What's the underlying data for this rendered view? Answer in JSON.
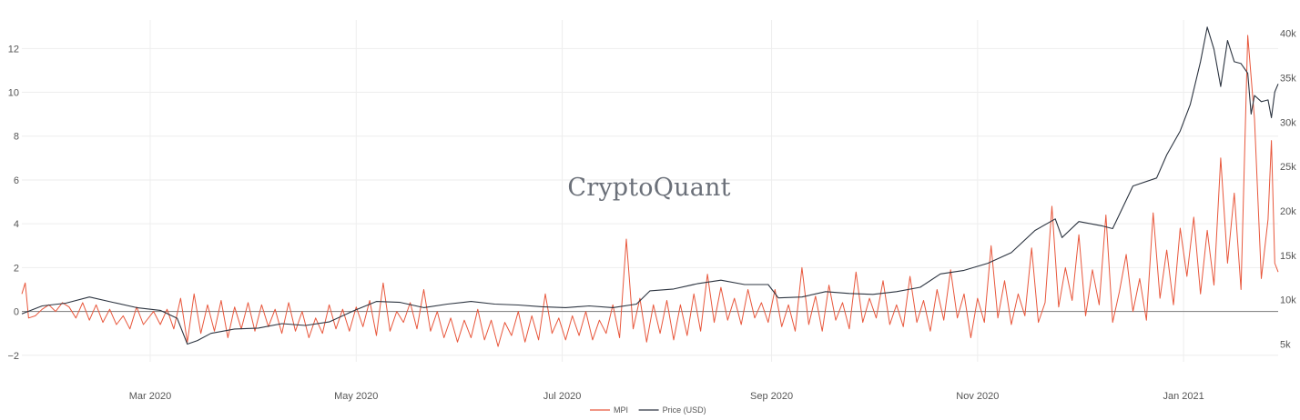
{
  "watermark": "CryptoQuant",
  "chart_data": {
    "type": "line",
    "x_range": [
      "2020-01-23",
      "2021-01-29"
    ],
    "x_ticks": [
      "2020-03-01",
      "2020-05-01",
      "2020-07-01",
      "2020-09-01",
      "2020-11-01",
      "2021-01-01"
    ],
    "x_tick_labels": [
      "Mar 2020",
      "May 2020",
      "Jul 2020",
      "Sep 2020",
      "Nov 2020",
      "Jan 2021"
    ],
    "y_left": {
      "range": [
        -2.3,
        13.3
      ],
      "ticks": [
        -2,
        0,
        2,
        4,
        6,
        8,
        10,
        12
      ],
      "tick_labels": [
        "−2",
        "0",
        "2",
        "4",
        "6",
        "8",
        "10",
        "12"
      ]
    },
    "y_right": {
      "range": [
        3000,
        41500
      ],
      "ticks": [
        5000,
        10000,
        15000,
        20000,
        25000,
        30000,
        35000,
        40000
      ],
      "tick_labels": [
        "5k",
        "10k",
        "15k",
        "20k",
        "25k",
        "30k",
        "35k",
        "40k"
      ]
    },
    "grid": true,
    "legend_position": "bottom-center",
    "series": [
      {
        "name": "MPI",
        "axis": "left",
        "color": "#e8573c",
        "points": [
          [
            "2020-01-23",
            0.8
          ],
          [
            "2020-01-24",
            1.3
          ],
          [
            "2020-01-25",
            -0.3
          ],
          [
            "2020-01-27",
            -0.2
          ],
          [
            "2020-01-29",
            0.1
          ],
          [
            "2020-01-31",
            0.3
          ],
          [
            "2020-02-02",
            0.0
          ],
          [
            "2020-02-04",
            0.4
          ],
          [
            "2020-02-06",
            0.2
          ],
          [
            "2020-02-08",
            -0.3
          ],
          [
            "2020-02-10",
            0.4
          ],
          [
            "2020-02-12",
            -0.4
          ],
          [
            "2020-02-14",
            0.3
          ],
          [
            "2020-02-16",
            -0.5
          ],
          [
            "2020-02-18",
            0.1
          ],
          [
            "2020-02-20",
            -0.6
          ],
          [
            "2020-02-22",
            -0.2
          ],
          [
            "2020-02-24",
            -0.8
          ],
          [
            "2020-02-26",
            0.2
          ],
          [
            "2020-02-28",
            -0.6
          ],
          [
            "2020-03-02",
            0.0
          ],
          [
            "2020-03-04",
            -0.6
          ],
          [
            "2020-03-06",
            0.1
          ],
          [
            "2020-03-08",
            -0.8
          ],
          [
            "2020-03-10",
            0.6
          ],
          [
            "2020-03-12",
            -1.4
          ],
          [
            "2020-03-14",
            0.8
          ],
          [
            "2020-03-16",
            -1.0
          ],
          [
            "2020-03-18",
            0.3
          ],
          [
            "2020-03-20",
            -0.9
          ],
          [
            "2020-03-22",
            0.5
          ],
          [
            "2020-03-24",
            -1.2
          ],
          [
            "2020-03-26",
            0.2
          ],
          [
            "2020-03-28",
            -0.8
          ],
          [
            "2020-03-30",
            0.4
          ],
          [
            "2020-04-01",
            -0.9
          ],
          [
            "2020-04-03",
            0.3
          ],
          [
            "2020-04-05",
            -0.7
          ],
          [
            "2020-04-07",
            0.1
          ],
          [
            "2020-04-09",
            -1.0
          ],
          [
            "2020-04-11",
            0.4
          ],
          [
            "2020-04-13",
            -0.9
          ],
          [
            "2020-04-15",
            0.0
          ],
          [
            "2020-04-17",
            -1.2
          ],
          [
            "2020-04-19",
            -0.3
          ],
          [
            "2020-04-21",
            -1.0
          ],
          [
            "2020-04-23",
            0.3
          ],
          [
            "2020-04-25",
            -0.8
          ],
          [
            "2020-04-27",
            0.1
          ],
          [
            "2020-04-29",
            -0.9
          ],
          [
            "2020-05-01",
            0.2
          ],
          [
            "2020-05-03",
            -0.7
          ],
          [
            "2020-05-05",
            0.5
          ],
          [
            "2020-05-07",
            -1.1
          ],
          [
            "2020-05-09",
            1.3
          ],
          [
            "2020-05-11",
            -0.9
          ],
          [
            "2020-05-13",
            0.0
          ],
          [
            "2020-05-15",
            -0.5
          ],
          [
            "2020-05-17",
            0.4
          ],
          [
            "2020-05-19",
            -0.8
          ],
          [
            "2020-05-21",
            1.0
          ],
          [
            "2020-05-23",
            -0.9
          ],
          [
            "2020-05-25",
            0.0
          ],
          [
            "2020-05-27",
            -1.2
          ],
          [
            "2020-05-29",
            -0.3
          ],
          [
            "2020-05-31",
            -1.4
          ],
          [
            "2020-06-02",
            -0.4
          ],
          [
            "2020-06-04",
            -1.2
          ],
          [
            "2020-06-06",
            0.1
          ],
          [
            "2020-06-08",
            -1.3
          ],
          [
            "2020-06-10",
            -0.4
          ],
          [
            "2020-06-12",
            -1.6
          ],
          [
            "2020-06-14",
            -0.5
          ],
          [
            "2020-06-16",
            -1.1
          ],
          [
            "2020-06-18",
            0.0
          ],
          [
            "2020-06-20",
            -1.4
          ],
          [
            "2020-06-22",
            -0.2
          ],
          [
            "2020-06-24",
            -1.3
          ],
          [
            "2020-06-26",
            0.8
          ],
          [
            "2020-06-28",
            -1.0
          ],
          [
            "2020-06-30",
            -0.3
          ],
          [
            "2020-07-02",
            -1.3
          ],
          [
            "2020-07-04",
            -0.2
          ],
          [
            "2020-07-06",
            -1.1
          ],
          [
            "2020-07-08",
            0.0
          ],
          [
            "2020-07-10",
            -1.3
          ],
          [
            "2020-07-12",
            -0.4
          ],
          [
            "2020-07-14",
            -1.0
          ],
          [
            "2020-07-16",
            0.3
          ],
          [
            "2020-07-18",
            -1.2
          ],
          [
            "2020-07-20",
            3.3
          ],
          [
            "2020-07-22",
            -0.8
          ],
          [
            "2020-07-24",
            0.6
          ],
          [
            "2020-07-26",
            -1.4
          ],
          [
            "2020-07-28",
            0.3
          ],
          [
            "2020-07-30",
            -1.0
          ],
          [
            "2020-08-01",
            0.5
          ],
          [
            "2020-08-03",
            -1.3
          ],
          [
            "2020-08-05",
            0.3
          ],
          [
            "2020-08-07",
            -1.1
          ],
          [
            "2020-08-09",
            0.8
          ],
          [
            "2020-08-11",
            -0.9
          ],
          [
            "2020-08-13",
            1.7
          ],
          [
            "2020-08-15",
            -0.5
          ],
          [
            "2020-08-17",
            1.1
          ],
          [
            "2020-08-19",
            -0.4
          ],
          [
            "2020-08-21",
            0.6
          ],
          [
            "2020-08-23",
            -0.6
          ],
          [
            "2020-08-25",
            1.0
          ],
          [
            "2020-08-27",
            -0.3
          ],
          [
            "2020-08-29",
            0.4
          ],
          [
            "2020-08-31",
            -0.5
          ],
          [
            "2020-09-02",
            1.0
          ],
          [
            "2020-09-04",
            -0.7
          ],
          [
            "2020-09-06",
            0.3
          ],
          [
            "2020-09-08",
            -0.9
          ],
          [
            "2020-09-10",
            2.0
          ],
          [
            "2020-09-12",
            -0.6
          ],
          [
            "2020-09-14",
            0.7
          ],
          [
            "2020-09-16",
            -0.9
          ],
          [
            "2020-09-18",
            1.2
          ],
          [
            "2020-09-20",
            -0.4
          ],
          [
            "2020-09-22",
            0.4
          ],
          [
            "2020-09-24",
            -0.8
          ],
          [
            "2020-09-26",
            1.8
          ],
          [
            "2020-09-28",
            -0.5
          ],
          [
            "2020-09-30",
            0.6
          ],
          [
            "2020-10-02",
            -0.3
          ],
          [
            "2020-10-04",
            1.4
          ],
          [
            "2020-10-06",
            -0.6
          ],
          [
            "2020-10-08",
            0.3
          ],
          [
            "2020-10-10",
            -0.7
          ],
          [
            "2020-10-12",
            1.6
          ],
          [
            "2020-10-14",
            -0.5
          ],
          [
            "2020-10-16",
            0.5
          ],
          [
            "2020-10-18",
            -0.9
          ],
          [
            "2020-10-20",
            1.0
          ],
          [
            "2020-10-22",
            -0.4
          ],
          [
            "2020-10-24",
            1.9
          ],
          [
            "2020-10-26",
            -0.3
          ],
          [
            "2020-10-28",
            0.8
          ],
          [
            "2020-10-30",
            -1.2
          ],
          [
            "2020-11-01",
            0.6
          ],
          [
            "2020-11-03",
            -0.5
          ],
          [
            "2020-11-05",
            3.0
          ],
          [
            "2020-11-07",
            -0.3
          ],
          [
            "2020-11-09",
            1.4
          ],
          [
            "2020-11-11",
            -0.6
          ],
          [
            "2020-11-13",
            0.8
          ],
          [
            "2020-11-15",
            -0.2
          ],
          [
            "2020-11-17",
            2.9
          ],
          [
            "2020-11-19",
            -0.5
          ],
          [
            "2020-11-21",
            0.4
          ],
          [
            "2020-11-23",
            4.8
          ],
          [
            "2020-11-25",
            0.2
          ],
          [
            "2020-11-27",
            2.0
          ],
          [
            "2020-11-29",
            0.5
          ],
          [
            "2020-12-01",
            3.5
          ],
          [
            "2020-12-03",
            -0.2
          ],
          [
            "2020-12-05",
            1.9
          ],
          [
            "2020-12-07",
            0.3
          ],
          [
            "2020-12-09",
            4.4
          ],
          [
            "2020-12-11",
            -0.5
          ],
          [
            "2020-12-13",
            0.9
          ],
          [
            "2020-12-15",
            2.6
          ],
          [
            "2020-12-17",
            0.0
          ],
          [
            "2020-12-19",
            1.5
          ],
          [
            "2020-12-21",
            -0.4
          ],
          [
            "2020-12-23",
            4.5
          ],
          [
            "2020-12-25",
            0.6
          ],
          [
            "2020-12-27",
            2.8
          ],
          [
            "2020-12-29",
            0.3
          ],
          [
            "2020-12-31",
            3.8
          ],
          [
            "2021-01-02",
            1.6
          ],
          [
            "2021-01-04",
            4.3
          ],
          [
            "2021-01-06",
            0.8
          ],
          [
            "2021-01-08",
            3.7
          ],
          [
            "2021-01-10",
            1.2
          ],
          [
            "2021-01-12",
            7.0
          ],
          [
            "2021-01-14",
            2.2
          ],
          [
            "2021-01-16",
            5.4
          ],
          [
            "2021-01-18",
            1.0
          ],
          [
            "2021-01-20",
            12.6
          ],
          [
            "2021-01-22",
            8.8
          ],
          [
            "2021-01-24",
            1.5
          ],
          [
            "2021-01-26",
            4.2
          ],
          [
            "2021-01-27",
            7.8
          ],
          [
            "2021-01-28",
            2.2
          ],
          [
            "2021-01-29",
            1.8
          ]
        ]
      },
      {
        "name": "Price (USD)",
        "axis": "right",
        "color": "#2c3440",
        "points": [
          [
            "2020-01-23",
            8400
          ],
          [
            "2020-01-29",
            9300
          ],
          [
            "2020-02-05",
            9600
          ],
          [
            "2020-02-12",
            10300
          ],
          [
            "2020-02-19",
            9700
          ],
          [
            "2020-02-26",
            9100
          ],
          [
            "2020-03-04",
            8800
          ],
          [
            "2020-03-09",
            7900
          ],
          [
            "2020-03-12",
            5000
          ],
          [
            "2020-03-15",
            5400
          ],
          [
            "2020-03-19",
            6200
          ],
          [
            "2020-03-26",
            6700
          ],
          [
            "2020-04-02",
            6800
          ],
          [
            "2020-04-09",
            7300
          ],
          [
            "2020-04-16",
            7100
          ],
          [
            "2020-04-23",
            7500
          ],
          [
            "2020-04-30",
            8700
          ],
          [
            "2020-05-07",
            9800
          ],
          [
            "2020-05-14",
            9700
          ],
          [
            "2020-05-21",
            9100
          ],
          [
            "2020-05-28",
            9500
          ],
          [
            "2020-06-04",
            9800
          ],
          [
            "2020-06-11",
            9500
          ],
          [
            "2020-06-18",
            9400
          ],
          [
            "2020-06-25",
            9200
          ],
          [
            "2020-07-02",
            9100
          ],
          [
            "2020-07-09",
            9300
          ],
          [
            "2020-07-16",
            9100
          ],
          [
            "2020-07-23",
            9500
          ],
          [
            "2020-07-27",
            11000
          ],
          [
            "2020-08-03",
            11200
          ],
          [
            "2020-08-10",
            11800
          ],
          [
            "2020-08-17",
            12200
          ],
          [
            "2020-08-24",
            11700
          ],
          [
            "2020-08-31",
            11700
          ],
          [
            "2020-09-03",
            10200
          ],
          [
            "2020-09-10",
            10300
          ],
          [
            "2020-09-17",
            10900
          ],
          [
            "2020-09-24",
            10700
          ],
          [
            "2020-10-01",
            10600
          ],
          [
            "2020-10-08",
            10900
          ],
          [
            "2020-10-15",
            11400
          ],
          [
            "2020-10-21",
            12900
          ],
          [
            "2020-10-28",
            13300
          ],
          [
            "2020-11-04",
            14100
          ],
          [
            "2020-11-11",
            15300
          ],
          [
            "2020-11-18",
            17800
          ],
          [
            "2020-11-24",
            19100
          ],
          [
            "2020-11-26",
            17000
          ],
          [
            "2020-12-01",
            18800
          ],
          [
            "2020-12-08",
            18300
          ],
          [
            "2020-12-11",
            18000
          ],
          [
            "2020-12-17",
            22800
          ],
          [
            "2020-12-24",
            23700
          ],
          [
            "2020-12-27",
            26300
          ],
          [
            "2020-12-31",
            29000
          ],
          [
            "2021-01-03",
            32000
          ],
          [
            "2021-01-06",
            36800
          ],
          [
            "2021-01-08",
            40700
          ],
          [
            "2021-01-10",
            38200
          ],
          [
            "2021-01-12",
            34000
          ],
          [
            "2021-01-14",
            39200
          ],
          [
            "2021-01-16",
            36800
          ],
          [
            "2021-01-18",
            36600
          ],
          [
            "2021-01-20",
            35500
          ],
          [
            "2021-01-21",
            30900
          ],
          [
            "2021-01-22",
            33000
          ],
          [
            "2021-01-24",
            32300
          ],
          [
            "2021-01-25",
            32400
          ],
          [
            "2021-01-26",
            32500
          ],
          [
            "2021-01-27",
            30500
          ],
          [
            "2021-01-28",
            33400
          ],
          [
            "2021-01-29",
            34300
          ]
        ]
      }
    ]
  }
}
